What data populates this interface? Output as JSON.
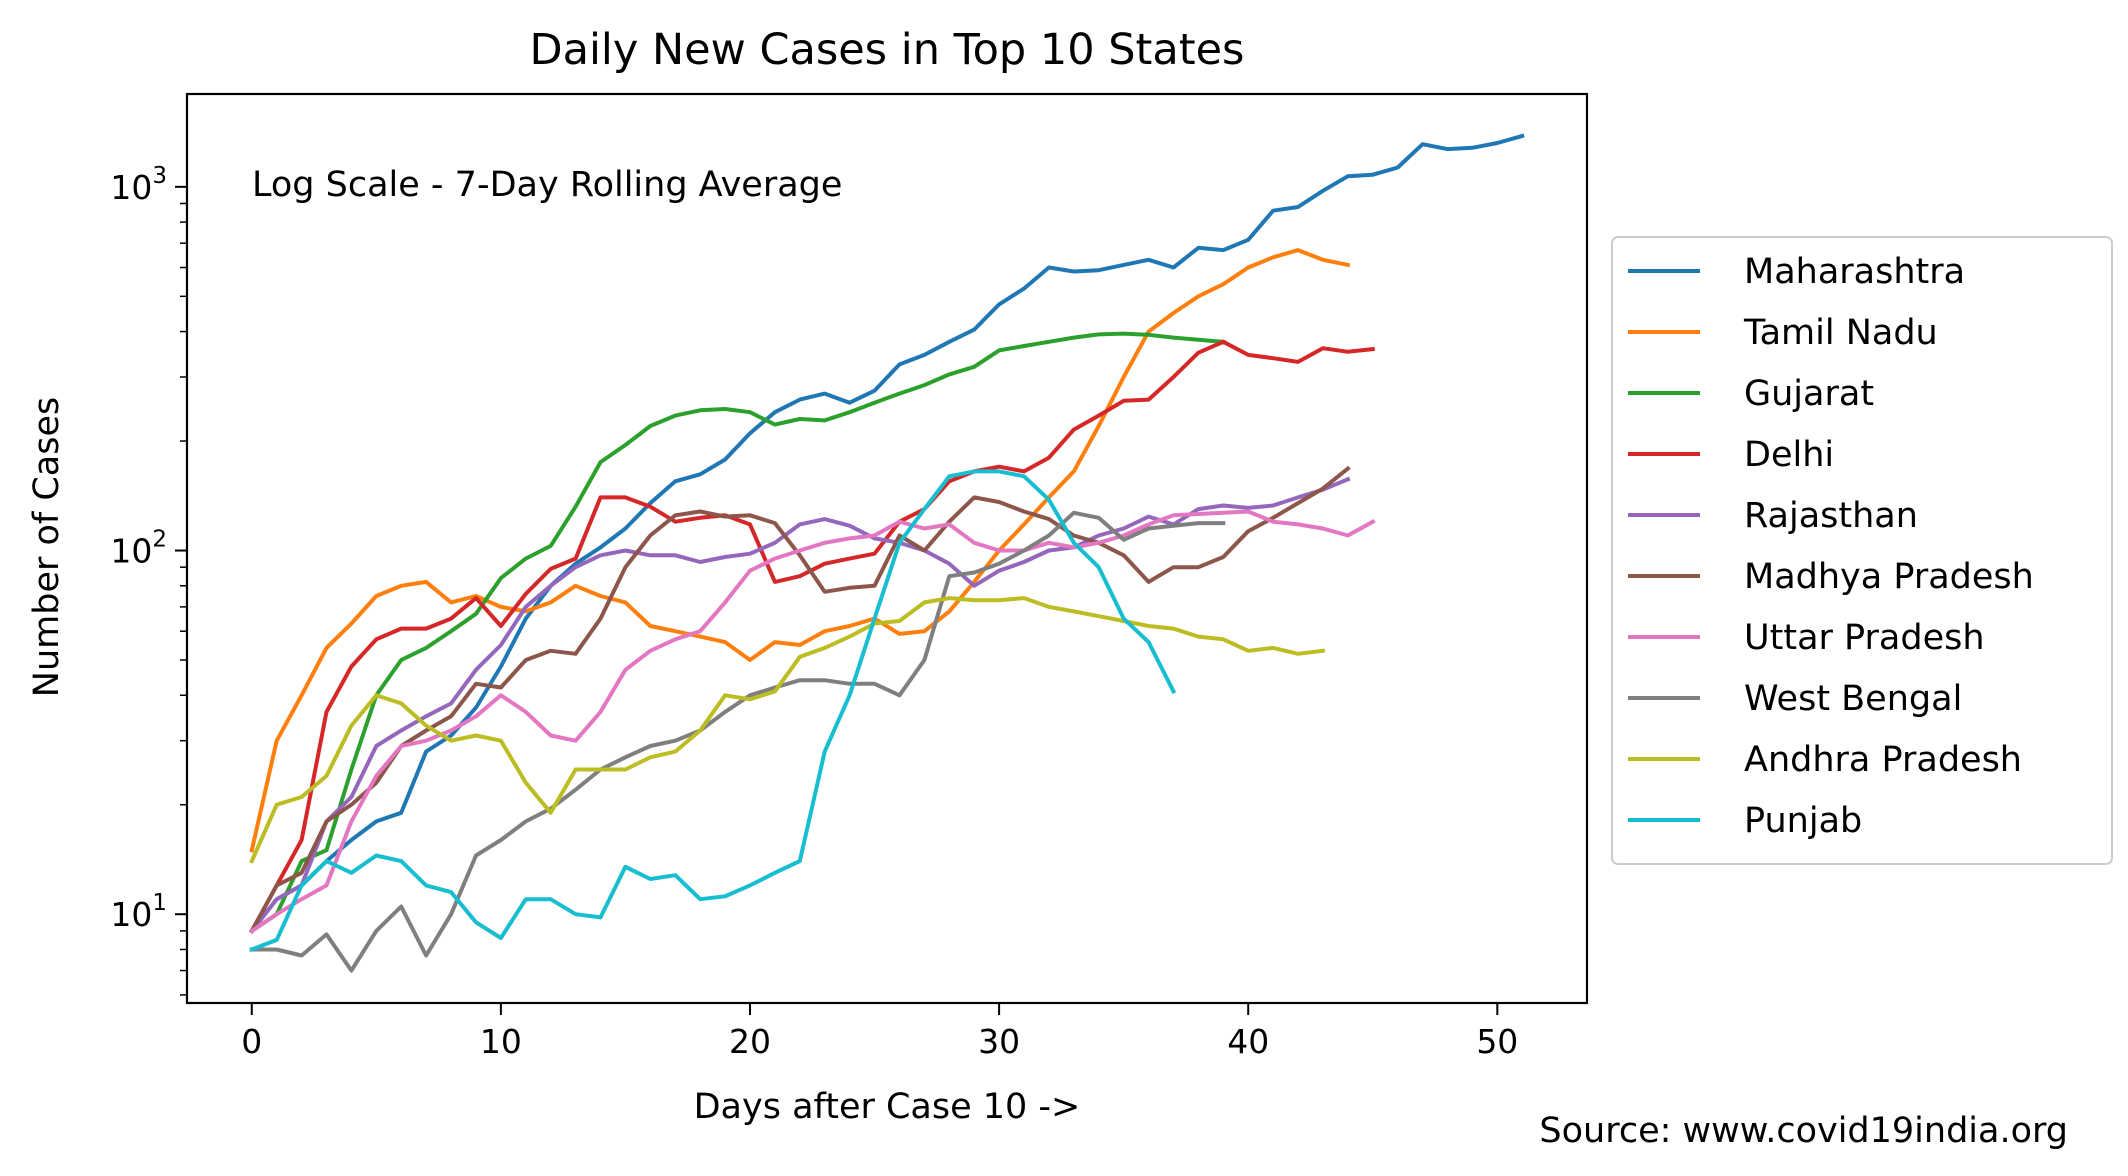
{
  "chart_data": {
    "type": "line",
    "title": "Daily New Cases in Top 10 States",
    "annotation": "Log Scale - 7-Day Rolling Average",
    "xlabel": "Days after Case 10 ->",
    "ylabel": "Number of Cases",
    "source": "Source: www.covid19india.org",
    "yscale": "log",
    "xlim": [
      -2.6,
      53.6
    ],
    "ylim": [
      5.7,
      1800
    ],
    "x_ticks": [
      0,
      10,
      20,
      30,
      40,
      50
    ],
    "x_tick_labels": [
      "0",
      "10",
      "20",
      "30",
      "40",
      "50"
    ],
    "y_ticks": [
      10,
      100,
      1000
    ],
    "y_tick_labels": [
      {
        "base": "10",
        "exp": "1"
      },
      {
        "base": "10",
        "exp": "2"
      },
      {
        "base": "10",
        "exp": "3"
      }
    ],
    "grid": false,
    "legend_position": "right",
    "series": [
      {
        "name": "Maharashtra",
        "color": "#1f77b4",
        "values": [
          9,
          11,
          12,
          14,
          16,
          18,
          19,
          28,
          31,
          37,
          48,
          65,
          80,
          92,
          102,
          115,
          135,
          155,
          162,
          178,
          210,
          240,
          260,
          270,
          255,
          275,
          325,
          345,
          375,
          405,
          475,
          525,
          600,
          585,
          590,
          610,
          630,
          600,
          680,
          670,
          715,
          860,
          880,
          975,
          1070,
          1080,
          1130,
          1310,
          1270,
          1280,
          1320,
          1380
        ]
      },
      {
        "name": "Tamil Nadu",
        "color": "#ff7f0e",
        "values": [
          15,
          30,
          40,
          54,
          63,
          75,
          80,
          82,
          72,
          75,
          70,
          68,
          72,
          80,
          75,
          72,
          62,
          60,
          58,
          56,
          50,
          56,
          55,
          60,
          62,
          65,
          59,
          60,
          68,
          82,
          100,
          118,
          140,
          165,
          220,
          300,
          400,
          450,
          500,
          540,
          600,
          640,
          670,
          630,
          610
        ]
      },
      {
        "name": "Gujarat",
        "color": "#2ca02c",
        "values": [
          9,
          10,
          14,
          15,
          25,
          40,
          50,
          54,
          60,
          67,
          84,
          95,
          103,
          132,
          175,
          195,
          220,
          235,
          243,
          245,
          240,
          222,
          230,
          228,
          240,
          255,
          270,
          285,
          305,
          320,
          355,
          365,
          375,
          385,
          393,
          395,
          392,
          385,
          380,
          375
        ]
      },
      {
        "name": "Delhi",
        "color": "#d62728",
        "values": [
          9,
          12,
          16,
          36,
          48,
          57,
          61,
          61,
          65,
          74,
          62,
          76,
          89,
          95,
          140,
          140,
          132,
          120,
          123,
          125,
          118,
          82,
          85,
          92,
          95,
          98,
          120,
          130,
          155,
          165,
          170,
          165,
          180,
          215,
          235,
          258,
          260,
          300,
          350,
          375,
          345,
          338,
          330,
          360,
          352,
          358
        ]
      },
      {
        "name": "Rajasthan",
        "color": "#9467bd",
        "values": [
          9,
          11,
          12,
          18,
          21,
          29,
          32,
          35,
          38,
          47,
          55,
          70,
          80,
          90,
          97,
          100,
          97,
          97,
          93,
          96,
          98,
          105,
          118,
          122,
          117,
          108,
          105,
          100,
          92,
          80,
          88,
          93,
          100,
          102,
          110,
          115,
          124,
          118,
          130,
          133,
          131,
          133,
          140,
          147,
          157
        ]
      },
      {
        "name": "Madhya Pradesh",
        "color": "#8c564b",
        "values": [
          9,
          12,
          13,
          18,
          20,
          23,
          29,
          32,
          35,
          43,
          42,
          50,
          53,
          52,
          65,
          90,
          110,
          125,
          128,
          124,
          125,
          119,
          97,
          77,
          79,
          80,
          110,
          100,
          120,
          140,
          136,
          128,
          122,
          110,
          105,
          97,
          82,
          90,
          90,
          96,
          113,
          123,
          135,
          148,
          168
        ]
      },
      {
        "name": "Uttar Pradesh",
        "color": "#e377c2",
        "values": [
          9,
          10,
          11,
          12,
          18,
          24,
          29,
          30,
          32,
          35,
          40,
          36,
          31,
          30,
          36,
          47,
          53,
          57,
          60,
          72,
          88,
          95,
          100,
          105,
          108,
          110,
          120,
          115,
          118,
          105,
          100,
          100,
          105,
          102,
          105,
          110,
          118,
          125,
          126,
          127,
          128,
          120,
          118,
          115,
          110,
          120
        ]
      },
      {
        "name": "West Bengal",
        "color": "#7f7f7f",
        "values": [
          8,
          8,
          7.7,
          8.8,
          7,
          9,
          10.5,
          7.7,
          10,
          14.5,
          16,
          18,
          19.5,
          22,
          25,
          27,
          29,
          30,
          32,
          36,
          40,
          42,
          44,
          44,
          43,
          43,
          40,
          50,
          85,
          87,
          92,
          100,
          110,
          127,
          123,
          107,
          115,
          117,
          119,
          119
        ]
      },
      {
        "name": "Andhra Pradesh",
        "color": "#bcbd22",
        "values": [
          14,
          20,
          21,
          24,
          33,
          40,
          38,
          33,
          30,
          31,
          30,
          23,
          19,
          25,
          25,
          25,
          27,
          28,
          32,
          40,
          39,
          41,
          51,
          54,
          58,
          63,
          64,
          72,
          74,
          73,
          73,
          74,
          70,
          68,
          66,
          64,
          62,
          61,
          58,
          57,
          53,
          54,
          52,
          53
        ]
      },
      {
        "name": "Punjab",
        "color": "#17becf",
        "values": [
          8,
          8.5,
          12,
          14,
          13,
          14.5,
          14,
          12,
          11.5,
          9.5,
          8.6,
          11,
          11,
          10,
          9.8,
          13.5,
          12.5,
          12.8,
          11,
          11.2,
          12,
          13,
          14,
          28,
          40,
          65,
          105,
          130,
          160,
          165,
          165,
          160,
          138,
          105,
          90,
          65,
          56,
          41
        ]
      }
    ]
  }
}
